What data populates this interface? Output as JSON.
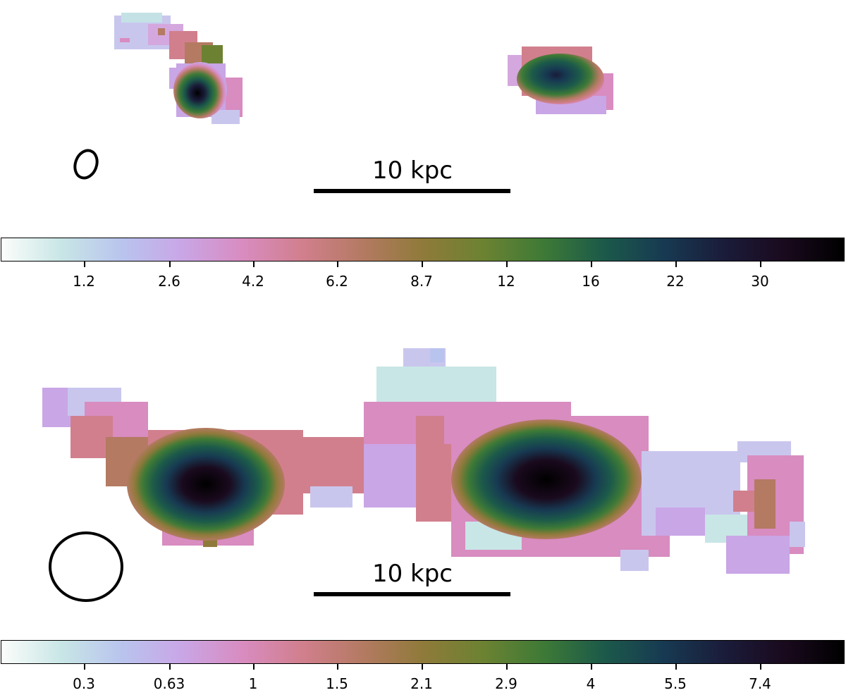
{
  "top_panel": {
    "scale_label": "10 kpc",
    "colorbar": {
      "tick_labels": [
        "1.2",
        "2.6",
        "4.2",
        "6.2",
        "8.7",
        "12",
        "16",
        "22",
        "30"
      ]
    }
  },
  "bottom_panel": {
    "scale_label": "10 kpc",
    "colorbar": {
      "tick_labels": [
        "0.3",
        "0.63",
        "1",
        "1.5",
        "2.1",
        "2.9",
        "4",
        "5.5",
        "7.4"
      ]
    }
  },
  "colormap": [
    "#fbfdfa",
    "#c8e6e6",
    "#b9c4ee",
    "#c9a6e6",
    "#d88cc0",
    "#d17f8d",
    "#b47a62",
    "#8f7a3a",
    "#6c8232",
    "#3e7a36",
    "#1c5a4a",
    "#173a52",
    "#1a1c3a",
    "#1a0a1e",
    "#000000"
  ]
}
